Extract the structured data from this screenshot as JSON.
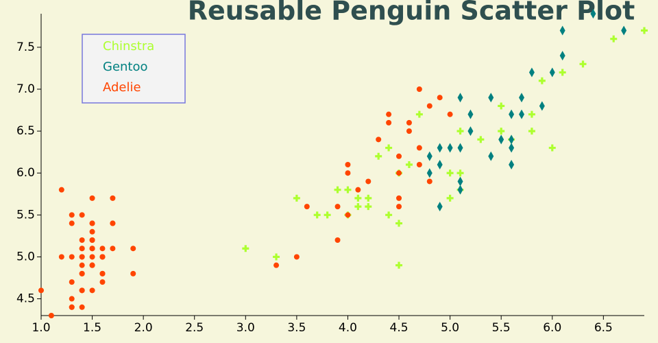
{
  "chart_data": {
    "type": "scatter",
    "title": "Reusable Penguin Scatter Plot",
    "xlim": [
      1.0,
      6.9
    ],
    "ylim": [
      4.3,
      7.9
    ],
    "xticks": [
      {
        "value": 1,
        "label": "1.0"
      },
      1.5,
      {
        "value": 2,
        "label": "2.0"
      },
      2.5,
      {
        "value": 3,
        "label": "3.0"
      },
      3.5,
      {
        "value": 4,
        "label": "4.0"
      },
      4.5,
      {
        "value": 5,
        "label": "5.0"
      },
      5.5,
      {
        "value": 6,
        "label": "6.0"
      },
      6.5
    ],
    "yticks": [
      4.5,
      {
        "value": 5,
        "label": "5.0"
      },
      5.5,
      {
        "value": 6,
        "label": "6.0"
      },
      6.5,
      {
        "value": 7,
        "label": "7.0"
      },
      7.5
    ],
    "legend": "top-left",
    "series": [
      {
        "name": "Chinstra",
        "color": "#adff2f",
        "marker": "plus",
        "x": [
          3.0,
          3.3,
          3.5,
          3.7,
          3.8,
          3.9,
          4.0,
          4.0,
          4.1,
          4.1,
          4.2,
          4.2,
          4.3,
          4.4,
          4.4,
          4.5,
          4.5,
          4.5,
          4.6,
          4.7,
          5.0,
          5.0,
          5.1,
          5.1,
          5.1,
          5.3,
          5.5,
          5.5,
          5.6,
          5.8,
          5.8,
          5.9,
          6.0,
          6.1,
          6.3,
          6.6,
          6.9
        ],
        "y": [
          5.1,
          5.0,
          5.7,
          5.5,
          5.5,
          5.8,
          5.8,
          5.5,
          5.7,
          5.6,
          5.7,
          5.6,
          6.2,
          6.3,
          5.5,
          6.0,
          5.4,
          4.9,
          6.1,
          6.7,
          6.0,
          5.7,
          6.5,
          6.0,
          5.8,
          6.4,
          6.8,
          6.5,
          6.4,
          6.7,
          6.5,
          7.1,
          6.3,
          7.2,
          7.3,
          7.6,
          7.7
        ]
      },
      {
        "name": "Gentoo",
        "color": "#008080",
        "marker": "diamond",
        "x": [
          4.9,
          4.9,
          4.9,
          4.8,
          4.8,
          5.0,
          5.1,
          5.1,
          5.1,
          5.1,
          5.2,
          5.2,
          5.4,
          5.4,
          5.5,
          5.6,
          5.6,
          5.6,
          5.6,
          5.7,
          5.7,
          5.8,
          5.9,
          6.0,
          6.1,
          6.1,
          6.4,
          6.7
        ],
        "y": [
          5.6,
          6.3,
          6.1,
          6.2,
          6.0,
          6.3,
          6.9,
          6.3,
          5.9,
          5.8,
          6.7,
          6.5,
          6.9,
          6.2,
          6.4,
          6.7,
          6.4,
          6.3,
          6.1,
          6.9,
          6.7,
          7.2,
          6.8,
          7.2,
          7.4,
          7.7,
          7.9,
          7.7
        ]
      },
      {
        "name": "Adelie",
        "color": "#ff4500",
        "marker": "circle",
        "x": [
          1.4,
          1.4,
          1.3,
          1.5,
          1.4,
          1.7,
          1.4,
          1.5,
          1.4,
          1.5,
          1.5,
          1.6,
          1.4,
          1.1,
          1.2,
          1.5,
          1.3,
          1.4,
          1.7,
          1.5,
          1.7,
          1.5,
          1.0,
          1.7,
          1.9,
          1.6,
          1.6,
          1.5,
          1.4,
          1.6,
          1.6,
          1.5,
          1.5,
          1.4,
          1.5,
          1.2,
          1.3,
          1.5,
          1.3,
          1.5,
          1.3,
          1.3,
          1.3,
          1.6,
          1.9,
          1.4,
          1.6,
          1.4,
          1.5,
          1.4,
          3.3,
          3.5,
          3.6,
          3.9,
          3.9,
          4.0,
          4.0,
          4.0,
          4.1,
          4.2,
          4.3,
          4.4,
          4.4,
          4.5,
          4.5,
          4.5,
          4.5,
          4.6,
          4.6,
          4.7,
          4.7,
          4.7,
          4.8,
          4.8,
          4.9,
          5.0
        ],
        "y": [
          5.1,
          4.9,
          4.7,
          4.6,
          5.0,
          5.4,
          4.6,
          5.0,
          4.4,
          4.9,
          5.4,
          4.8,
          4.8,
          4.3,
          5.8,
          5.7,
          5.4,
          5.1,
          5.7,
          5.1,
          5.4,
          5.1,
          4.6,
          5.1,
          4.8,
          5.0,
          5.0,
          5.2,
          5.2,
          4.7,
          4.8,
          5.4,
          5.2,
          5.5,
          4.9,
          5.0,
          5.5,
          4.9,
          4.4,
          5.1,
          5.0,
          4.5,
          4.4,
          5.0,
          5.1,
          4.8,
          5.1,
          4.6,
          5.3,
          5.0,
          4.9,
          5.0,
          5.6,
          5.2,
          5.6,
          5.5,
          6.0,
          6.1,
          5.8,
          5.9,
          6.4,
          6.7,
          6.6,
          6.2,
          6.0,
          5.7,
          5.6,
          6.5,
          6.6,
          7.0,
          6.3,
          6.1,
          6.8,
          5.9,
          6.9,
          6.7
        ]
      }
    ]
  }
}
